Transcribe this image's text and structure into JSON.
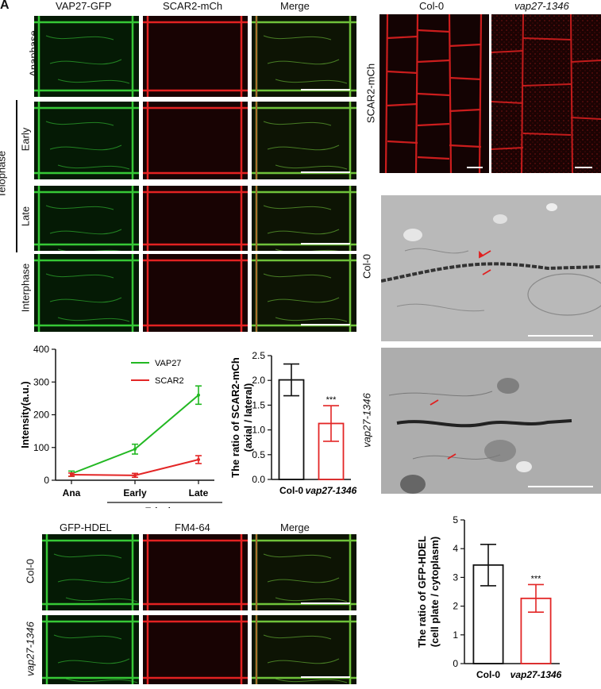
{
  "panel_letters": {
    "a": "A"
  },
  "panelA": {
    "columns": [
      "VAP27-GFP",
      "SCAR2-mCh",
      "Merge"
    ],
    "rows": [
      "Anaphase",
      "Early",
      "Late",
      "Interphase"
    ],
    "group_label": "Telophase"
  },
  "panelB": {
    "columns": [
      "Col-0",
      "vap27-1346"
    ],
    "row_label": "SCAR2-mCh"
  },
  "panelC": {
    "row_labels": [
      "Col-0",
      "vap27-1346"
    ]
  },
  "panelE": {
    "columns": [
      "GFP-HDEL",
      "FM4-64",
      "Merge"
    ],
    "rows": [
      "Col-0",
      "vap27-1346"
    ]
  },
  "colors": {
    "green": "#22b822",
    "red": "#e32626",
    "black": "#111111"
  },
  "chart_data": [
    {
      "type": "line",
      "categories": [
        "Ana",
        "Early",
        "Late"
      ],
      "group_label": "Telophase",
      "ylabel": "Intensity(a.u.)",
      "ylim": [
        0,
        400
      ],
      "yticks": [
        "0",
        "100",
        "200",
        "300",
        "400"
      ],
      "legend": "top-right",
      "series": [
        {
          "name": "VAP27",
          "color": "#22b822",
          "values": [
            20,
            95,
            260
          ],
          "errors": [
            8,
            15,
            28
          ]
        },
        {
          "name": "SCAR2",
          "color": "#e32626",
          "values": [
            17,
            15,
            63
          ],
          "errors": [
            5,
            6,
            12
          ]
        }
      ]
    },
    {
      "type": "bar",
      "categories": [
        "Col-0",
        "vap27-1346"
      ],
      "ylabel": "The ratio of SCAR2-mCh\n(axial / lateral)",
      "ylim": [
        0,
        2.5
      ],
      "yticks": [
        "0.0",
        "0.5",
        "1.0",
        "1.5",
        "2.0",
        "2.5"
      ],
      "values": [
        2.01,
        1.13
      ],
      "errors": [
        0.32,
        0.36
      ],
      "bar_colors": [
        "#111111",
        "#e32626"
      ],
      "annotation": "***"
    },
    {
      "type": "bar",
      "categories": [
        "Col-0",
        "vap27-1346"
      ],
      "ylabel": "The ratio of GFP-HDEL\n(cell plate / cytoplasm)",
      "ylim": [
        0,
        5
      ],
      "yticks": [
        "0",
        "1",
        "2",
        "3",
        "4",
        "5"
      ],
      "values": [
        3.43,
        2.27
      ],
      "errors": [
        0.72,
        0.48
      ],
      "bar_colors": [
        "#111111",
        "#e32626"
      ],
      "annotation": "***"
    }
  ]
}
